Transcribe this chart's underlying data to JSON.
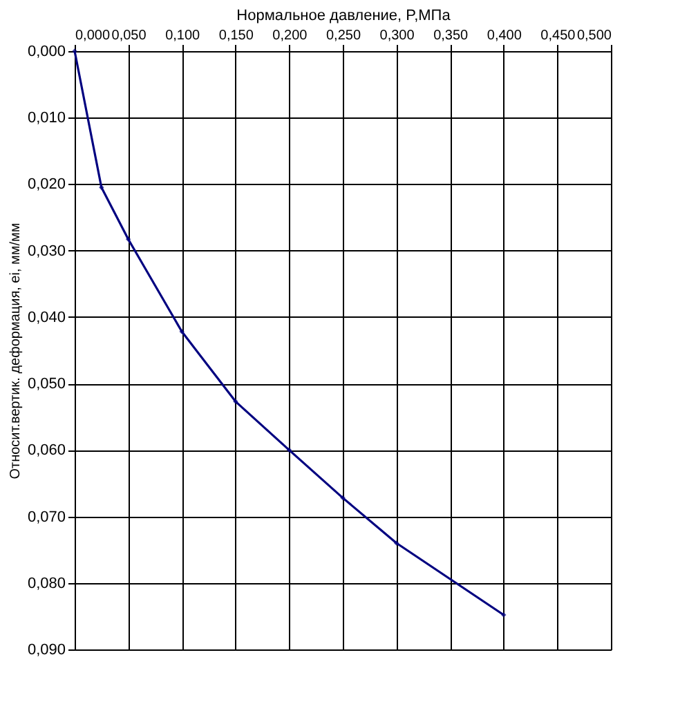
{
  "chart_data": {
    "type": "line",
    "xlabel": "Нормальное  давление,  P,МПа",
    "ylabel": "Относит.вертик. деформация, ei, мм/мм",
    "x": [
      0,
      0.025,
      0.05,
      0.1,
      0.15,
      0.2,
      0.25,
      0.3,
      0.4
    ],
    "series": [
      {
        "color": "#000080",
        "values": [
          0,
          0.0205,
          0.0283,
          0.0422,
          0.0527,
          0.06,
          0.0672,
          0.074,
          0.0848
        ]
      }
    ],
    "xlim": [
      0,
      0.5
    ],
    "xticks": [
      {
        "value": 0,
        "label": "0,000"
      },
      {
        "value": 0.05,
        "label": "0,050"
      },
      {
        "value": 0.1,
        "label": "0,100"
      },
      {
        "value": 0.15,
        "label": "0,150"
      },
      {
        "value": 0.2,
        "label": "0,200"
      },
      {
        "value": 0.25,
        "label": "0,250"
      },
      {
        "value": 0.3,
        "label": "0,300"
      },
      {
        "value": 0.35,
        "label": "0,350"
      },
      {
        "value": 0.4,
        "label": "0,400"
      },
      {
        "value": 0.45,
        "label": "0,450"
      },
      {
        "value": 0.5,
        "label": "0,500"
      }
    ],
    "ylim": [
      0.09,
      0
    ],
    "yticks": [
      {
        "value": 0,
        "label": "0,000"
      },
      {
        "value": 0.01,
        "label": "0,010"
      },
      {
        "value": 0.02,
        "label": "0,020"
      },
      {
        "value": 0.03,
        "label": "0,030"
      },
      {
        "value": 0.04,
        "label": "0,040"
      },
      {
        "value": 0.05,
        "label": "0,050"
      },
      {
        "value": 0.06,
        "label": "0,060"
      },
      {
        "value": 0.07,
        "label": "0,070"
      },
      {
        "value": 0.08,
        "label": "0,080"
      },
      {
        "value": 0.09,
        "label": "0,090"
      }
    ],
    "grid": true,
    "marker": "diamond",
    "line_style": "solid"
  }
}
